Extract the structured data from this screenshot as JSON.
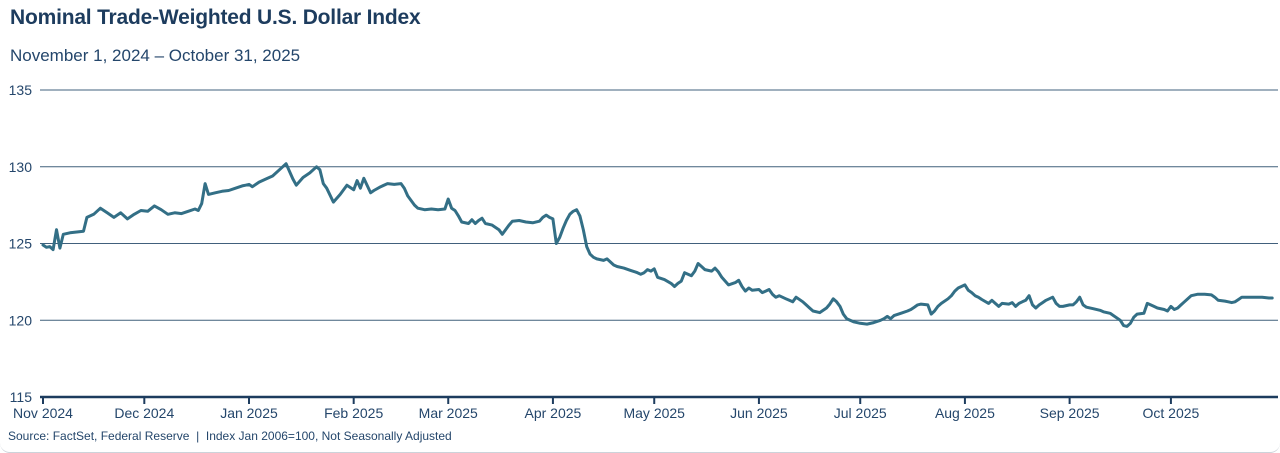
{
  "header": {
    "title": "Nominal Trade-Weighted U.S. Dollar Index",
    "subtitle": "November 1, 2024 – October 31, 2025"
  },
  "source": {
    "text": "Source: FactSet, Federal Reserve  |  Index Jan 2006=100, Not Seasonally Adjusted"
  },
  "colors": {
    "title": "#1d3c5e",
    "axis": "#1d3c5e",
    "grid": "#41607c",
    "line": "#336f86",
    "label": "#24466b"
  },
  "chart_data": {
    "type": "line",
    "title": "Nominal Trade-Weighted U.S. Dollar Index",
    "subtitle": "November 1, 2024 – October 31, 2025",
    "xlabel": "",
    "ylabel": "",
    "ylim": [
      115,
      135
    ],
    "y_ticks": [
      115,
      120,
      125,
      130,
      135
    ],
    "grid": true,
    "legend": "none",
    "x_unit": "days since 2024-11-01",
    "x_range_days": [
      0,
      365
    ],
    "x_ticks": [
      {
        "label": "Nov 2024",
        "day": 0
      },
      {
        "label": "Dec 2024",
        "day": 30
      },
      {
        "label": "Jan 2025",
        "day": 61
      },
      {
        "label": "Feb 2025",
        "day": 92
      },
      {
        "label": "Mar 2025",
        "day": 120
      },
      {
        "label": "Apr 2025",
        "day": 151
      },
      {
        "label": "May 2025",
        "day": 181
      },
      {
        "label": "Jun 2025",
        "day": 212
      },
      {
        "label": "Jul 2025",
        "day": 242
      },
      {
        "label": "Aug 2025",
        "day": 273
      },
      {
        "label": "Sep 2025",
        "day": 304
      },
      {
        "label": "Oct 2025",
        "day": 334
      }
    ],
    "series": [
      {
        "name": "Nominal Trade-Weighted U.S. Dollar Index",
        "color": "#336f86",
        "points": [
          [
            0,
            124.9
          ],
          [
            1,
            124.75
          ],
          [
            2,
            124.8
          ],
          [
            3,
            124.6
          ],
          [
            4,
            125.9
          ],
          [
            5,
            124.7
          ],
          [
            6,
            125.6
          ],
          [
            8,
            125.7
          ],
          [
            10,
            125.75
          ],
          [
            12,
            125.8
          ],
          [
            13,
            126.7
          ],
          [
            15,
            126.9
          ],
          [
            17,
            127.3
          ],
          [
            19,
            127.0
          ],
          [
            21,
            126.7
          ],
          [
            23,
            127.0
          ],
          [
            25,
            126.6
          ],
          [
            27,
            126.9
          ],
          [
            29,
            127.15
          ],
          [
            31,
            127.1
          ],
          [
            33,
            127.45
          ],
          [
            35,
            127.2
          ],
          [
            37,
            126.9
          ],
          [
            39,
            127.0
          ],
          [
            41,
            126.95
          ],
          [
            43,
            127.1
          ],
          [
            45,
            127.25
          ],
          [
            46,
            127.15
          ],
          [
            47,
            127.6
          ],
          [
            48,
            128.9
          ],
          [
            49,
            128.2
          ],
          [
            51,
            128.3
          ],
          [
            53,
            128.4
          ],
          [
            55,
            128.45
          ],
          [
            57,
            128.6
          ],
          [
            59,
            128.75
          ],
          [
            60,
            128.8
          ],
          [
            61,
            128.85
          ],
          [
            62,
            128.7
          ],
          [
            64,
            129.0
          ],
          [
            66,
            129.2
          ],
          [
            68,
            129.4
          ],
          [
            70,
            129.8
          ],
          [
            72,
            130.2
          ],
          [
            73,
            129.7
          ],
          [
            74,
            129.2
          ],
          [
            75,
            128.8
          ],
          [
            77,
            129.3
          ],
          [
            79,
            129.6
          ],
          [
            81,
            130.0
          ],
          [
            82,
            129.8
          ],
          [
            83,
            128.9
          ],
          [
            84,
            128.6
          ],
          [
            86,
            127.7
          ],
          [
            88,
            128.2
          ],
          [
            90,
            128.8
          ],
          [
            92,
            128.5
          ],
          [
            93,
            129.1
          ],
          [
            94,
            128.6
          ],
          [
            95,
            129.25
          ],
          [
            97,
            128.3
          ],
          [
            98,
            128.45
          ],
          [
            100,
            128.7
          ],
          [
            102,
            128.9
          ],
          [
            104,
            128.85
          ],
          [
            106,
            128.9
          ],
          [
            107,
            128.6
          ],
          [
            108,
            128.1
          ],
          [
            110,
            127.5
          ],
          [
            111,
            127.3
          ],
          [
            113,
            127.2
          ],
          [
            115,
            127.25
          ],
          [
            117,
            127.2
          ],
          [
            119,
            127.25
          ],
          [
            120,
            127.9
          ],
          [
            121,
            127.3
          ],
          [
            122,
            127.15
          ],
          [
            123,
            126.8
          ],
          [
            124,
            126.4
          ],
          [
            126,
            126.3
          ],
          [
            127,
            126.55
          ],
          [
            128,
            126.3
          ],
          [
            129,
            126.5
          ],
          [
            130,
            126.65
          ],
          [
            131,
            126.3
          ],
          [
            133,
            126.2
          ],
          [
            135,
            125.9
          ],
          [
            136,
            125.6
          ],
          [
            137,
            125.9
          ],
          [
            138,
            126.2
          ],
          [
            139,
            126.45
          ],
          [
            141,
            126.5
          ],
          [
            143,
            126.4
          ],
          [
            145,
            126.35
          ],
          [
            147,
            126.45
          ],
          [
            148,
            126.7
          ],
          [
            149,
            126.85
          ],
          [
            150,
            126.7
          ],
          [
            151,
            126.6
          ],
          [
            152,
            125.0
          ],
          [
            153,
            125.4
          ],
          [
            154,
            126.0
          ],
          [
            155,
            126.5
          ],
          [
            156,
            126.9
          ],
          [
            157,
            127.1
          ],
          [
            158,
            127.2
          ],
          [
            159,
            126.8
          ],
          [
            160,
            125.9
          ],
          [
            161,
            124.8
          ],
          [
            162,
            124.3
          ],
          [
            163,
            124.1
          ],
          [
            164,
            124.0
          ],
          [
            166,
            123.9
          ],
          [
            167,
            124.0
          ],
          [
            168,
            123.8
          ],
          [
            169,
            123.6
          ],
          [
            170,
            123.5
          ],
          [
            172,
            123.4
          ],
          [
            174,
            123.25
          ],
          [
            176,
            123.1
          ],
          [
            177,
            123.0
          ],
          [
            178,
            123.1
          ],
          [
            179,
            123.3
          ],
          [
            180,
            123.2
          ],
          [
            181,
            123.35
          ],
          [
            182,
            122.8
          ],
          [
            184,
            122.65
          ],
          [
            186,
            122.4
          ],
          [
            187,
            122.2
          ],
          [
            188,
            122.4
          ],
          [
            189,
            122.55
          ],
          [
            190,
            123.1
          ],
          [
            192,
            122.9
          ],
          [
            193,
            123.2
          ],
          [
            194,
            123.7
          ],
          [
            195,
            123.5
          ],
          [
            196,
            123.3
          ],
          [
            198,
            123.2
          ],
          [
            199,
            123.4
          ],
          [
            200,
            123.15
          ],
          [
            201,
            122.8
          ],
          [
            202,
            122.55
          ],
          [
            203,
            122.3
          ],
          [
            205,
            122.45
          ],
          [
            206,
            122.6
          ],
          [
            207,
            122.2
          ],
          [
            208,
            121.9
          ],
          [
            209,
            122.1
          ],
          [
            210,
            121.95
          ],
          [
            212,
            122.0
          ],
          [
            213,
            121.8
          ],
          [
            214,
            121.9
          ],
          [
            215,
            122.0
          ],
          [
            216,
            121.7
          ],
          [
            217,
            121.5
          ],
          [
            218,
            121.6
          ],
          [
            220,
            121.4
          ],
          [
            221,
            121.3
          ],
          [
            222,
            121.2
          ],
          [
            223,
            121.5
          ],
          [
            225,
            121.2
          ],
          [
            226,
            121.0
          ],
          [
            227,
            120.8
          ],
          [
            228,
            120.6
          ],
          [
            230,
            120.5
          ],
          [
            232,
            120.8
          ],
          [
            233,
            121.05
          ],
          [
            234,
            121.4
          ],
          [
            235,
            121.2
          ],
          [
            236,
            120.9
          ],
          [
            237,
            120.4
          ],
          [
            238,
            120.1
          ],
          [
            240,
            119.9
          ],
          [
            241,
            119.85
          ],
          [
            242,
            119.8
          ],
          [
            244,
            119.75
          ],
          [
            246,
            119.85
          ],
          [
            248,
            120.0
          ],
          [
            249,
            120.1
          ],
          [
            250,
            120.25
          ],
          [
            251,
            120.1
          ],
          [
            252,
            120.3
          ],
          [
            254,
            120.45
          ],
          [
            256,
            120.6
          ],
          [
            257,
            120.7
          ],
          [
            258,
            120.85
          ],
          [
            259,
            121.0
          ],
          [
            260,
            121.05
          ],
          [
            262,
            121.0
          ],
          [
            263,
            120.4
          ],
          [
            264,
            120.6
          ],
          [
            265,
            120.9
          ],
          [
            266,
            121.1
          ],
          [
            268,
            121.4
          ],
          [
            269,
            121.6
          ],
          [
            270,
            121.9
          ],
          [
            271,
            122.1
          ],
          [
            273,
            122.3
          ],
          [
            274,
            121.95
          ],
          [
            275,
            121.8
          ],
          [
            276,
            121.6
          ],
          [
            277,
            121.5
          ],
          [
            278,
            121.35
          ],
          [
            280,
            121.1
          ],
          [
            281,
            121.3
          ],
          [
            282,
            121.1
          ],
          [
            283,
            120.9
          ],
          [
            284,
            121.1
          ],
          [
            286,
            121.05
          ],
          [
            287,
            121.15
          ],
          [
            288,
            120.9
          ],
          [
            289,
            121.1
          ],
          [
            290,
            121.2
          ],
          [
            291,
            121.3
          ],
          [
            292,
            121.6
          ],
          [
            293,
            121.0
          ],
          [
            294,
            120.8
          ],
          [
            295,
            121.0
          ],
          [
            296,
            121.15
          ],
          [
            297,
            121.3
          ],
          [
            299,
            121.5
          ],
          [
            300,
            121.1
          ],
          [
            301,
            120.9
          ],
          [
            302,
            120.9
          ],
          [
            304,
            121.0
          ],
          [
            305,
            121.0
          ],
          [
            306,
            121.2
          ],
          [
            307,
            121.5
          ],
          [
            308,
            121.0
          ],
          [
            309,
            120.85
          ],
          [
            311,
            120.75
          ],
          [
            313,
            120.65
          ],
          [
            314,
            120.55
          ],
          [
            316,
            120.45
          ],
          [
            317,
            120.3
          ],
          [
            319,
            120.0
          ],
          [
            320,
            119.65
          ],
          [
            321,
            119.6
          ],
          [
            322,
            119.8
          ],
          [
            323,
            120.2
          ],
          [
            324,
            120.4
          ],
          [
            326,
            120.45
          ],
          [
            327,
            121.1
          ],
          [
            328,
            121.0
          ],
          [
            329,
            120.9
          ],
          [
            330,
            120.8
          ],
          [
            332,
            120.7
          ],
          [
            333,
            120.6
          ],
          [
            334,
            120.9
          ],
          [
            335,
            120.7
          ],
          [
            336,
            120.8
          ],
          [
            337,
            121.0
          ],
          [
            338,
            121.2
          ],
          [
            339,
            121.4
          ],
          [
            340,
            121.6
          ],
          [
            342,
            121.7
          ],
          [
            344,
            121.7
          ],
          [
            346,
            121.65
          ],
          [
            347,
            121.5
          ],
          [
            348,
            121.3
          ],
          [
            350,
            121.25
          ],
          [
            351,
            121.2
          ],
          [
            352,
            121.15
          ],
          [
            353,
            121.2
          ],
          [
            354,
            121.35
          ],
          [
            355,
            121.5
          ],
          [
            357,
            121.5
          ],
          [
            359,
            121.5
          ],
          [
            361,
            121.5
          ],
          [
            363,
            121.45
          ],
          [
            364,
            121.45
          ]
        ]
      }
    ]
  }
}
